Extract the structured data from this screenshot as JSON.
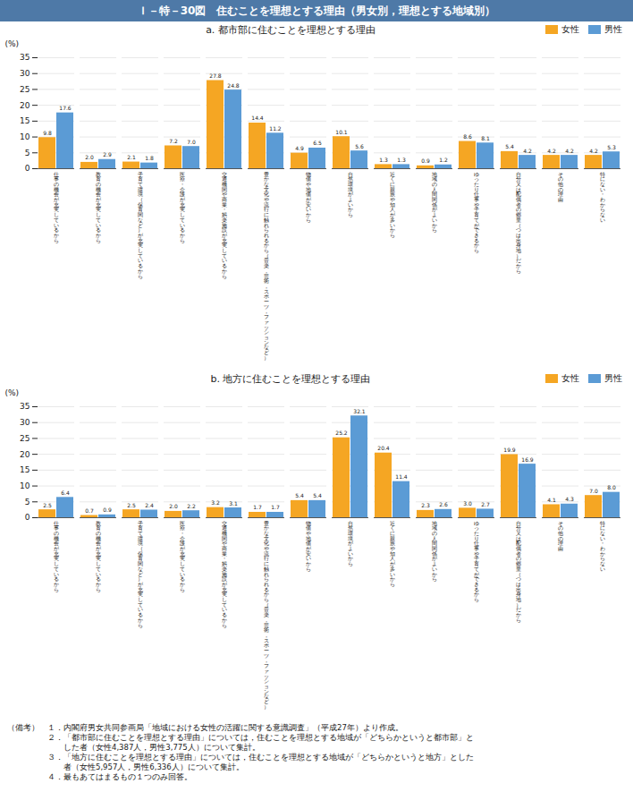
{
  "chart_data": [
    {
      "type": "bar",
      "title": "Ｉ－特－30図　住むことを理想とする理由（男女別，理想とする地域別）",
      "subtitle": "a.  都市部に住むことを理想とする理由",
      "ylabel": "(%)",
      "categories": [
        "仕\n事\nの\n機\n会\nが\n充\n実\nし\nて\nい\nる\nか\nら",
        "教\n育\nの\n機\n会\nが\n充\n実\nし\nて\nい\nる\nか\nら",
        "子\n育\nて\n環\n境\n（\n保\n育\n関\nな\nど\n）\nが\n充\n実\nし\nて\nい\nる\nか\nら",
        "医\n療\n・\n介\n護\nが\n充\n実\nし\nて\nい\nる\nか\nら",
        "交\n通\n機\n関\nや\n商\n業\n・\n娯\n楽\n施\n設\nが\n充\n実\nし\nて\nい\nる\nか\nら",
        "豊\nか\nな\n文\n化\nや\n流\n行\nに\n触\nれ\nら\nれ\nる\nか\nら\n（\n音\n楽\n，\n芸\n術\n，\nス\nポ\nー\nツ\n，\nフ\nァ\nッ\nシ\nョ\nン\nな\nど\n）",
        "物\n価\nや\n地\n価\nが\n安\nい\nか\nら",
        "自\n然\n環\n境\nが\nよ\nい\nか\nら",
        "近\nく\nに\n親\n族\nや\n知\n人\nが\n多\nい\nか\nら",
        "地\n域\nの\n人\n間\n関\n係\nが\nよ\nい\nか\nら",
        "ゆ\nっ\nた\nり\n仕\n事\nや\n子\n育\nて\nが\nで\nき\nる\nか\nら",
        "自\n分\n又\nは\n配\n偶\n者\nの\n郷\n里\n（\nつ\nは\n出\n身\n地\n）\nだ\nか\nら",
        "そ\nの\n他\nの\n理\n由",
        "特\nに\nな\nい\n・\nわ\nか\nら\nな\nい"
      ],
      "series": [
        {
          "name": "女性",
          "color": "#f5a623",
          "values": [
            9.8,
            2.0,
            2.1,
            7.2,
            27.8,
            14.4,
            4.9,
            10.1,
            1.3,
            0.9,
            8.6,
            5.4,
            4.2,
            4.2
          ],
          "value_labels": [
            "9.8",
            "2.0",
            "2.1",
            "7.2",
            "27.8",
            "14.4",
            "4.9",
            "10.1",
            "1.3",
            "0.9",
            "8.6",
            "5.4",
            "4.2",
            "4.2"
          ]
        },
        {
          "name": "男性",
          "color": "#5b9bd5",
          "values": [
            17.6,
            2.9,
            1.8,
            7.0,
            24.8,
            11.2,
            6.5,
            5.6,
            1.3,
            1.2,
            8.1,
            4.2,
            4.2,
            5.3
          ],
          "value_labels": [
            "17.6",
            "2.9",
            "1.8",
            "7.0",
            "24.8",
            "11.2",
            "6.5",
            "5.6",
            "1.3",
            "1.2",
            "8.1",
            "4.2",
            "4.2",
            "5.3"
          ]
        }
      ],
      "ylim": [
        0,
        35
      ],
      "yticks": [
        0,
        5,
        10,
        15,
        20,
        25,
        30,
        35
      ],
      "grid": true,
      "data_labels": true,
      "legend": "upper right"
    },
    {
      "type": "bar",
      "subtitle": "b.  地方に住むことを理想とする理由",
      "ylabel": "(%)",
      "categories": [
        "仕\n事\nの\n機\n会\nが\n充\n実\nし\nて\nい\nる\nか\nら",
        "教\n育\nの\n機\n会\nが\n充\n実\nし\nて\nい\nる\nか\nら",
        "子\n育\nて\n環\n境\n（\n保\n育\n関\nな\nど\n）\nが\n充\n実\nし\nて\nい\nる\nか\nら",
        "医\n療\n・\n介\n護\nが\n充\n実\nし\nて\nい\nる\nか\nら",
        "交\n通\n機\n関\nや\n商\n業\n・\n娯\n楽\n施\n設\nが\n充\n実\nし\nて\nい\nる\nか\nら",
        "豊\nか\nな\n文\n化\nや\n流\n行\nに\n触\nれ\nら\nれ\nる\nか\nら\n（\n音\n楽\n，\n芸\n術\n，\nス\nポ\nー\nツ\n，\nフ\nァ\nッ\nシ\nョ\nン\nな\nど\n）",
        "物\n価\nや\n地\n価\nが\n安\nい\nか\nら",
        "自\n然\n環\n境\nが\nよ\nい\nか\nら",
        "近\nく\nに\n親\n族\nや\n知\n人\nが\n多\nい\nか\nら",
        "地\n域\nの\n人\n間\n関\n係\nが\nよ\nい\nか\nら",
        "ゆ\nっ\nた\nり\n仕\n事\nや\n子\n育\nて\nが\nで\nき\nる\nか\nら",
        "自\n分\n又\nは\n配\n偶\n者\nの\n郷\n里\n（\nつ\nは\n出\n身\n地\n）\nだ\nか\nら",
        "そ\nの\n他\nの\n理\n由",
        "特\nに\nな\nい\n・\nわ\nか\nら\nな\nい"
      ],
      "series": [
        {
          "name": "女性",
          "color": "#f5a623",
          "values": [
            2.5,
            0.7,
            2.5,
            2.0,
            3.2,
            1.7,
            5.4,
            25.2,
            20.4,
            2.3,
            3.0,
            19.9,
            4.1,
            7.0
          ],
          "value_labels": [
            "2.5",
            "0.7",
            "2.5",
            "2.0",
            "3.2",
            "1.7",
            "5.4",
            "25.2",
            "20.4",
            "2.3",
            "3.0",
            "19.9",
            "4.1",
            "7.0"
          ]
        },
        {
          "name": "男性",
          "color": "#5b9bd5",
          "values": [
            6.4,
            0.9,
            2.4,
            2.2,
            3.1,
            1.7,
            5.4,
            32.1,
            11.4,
            2.6,
            2.7,
            16.9,
            4.3,
            8.0
          ],
          "value_labels": [
            "6.4",
            "0.9",
            "2.4",
            "2.2",
            "3.1",
            "1.7",
            "5.4",
            "32.1",
            "11.4",
            "2.6",
            "2.7",
            "16.9",
            "4.3",
            "8.0"
          ]
        }
      ],
      "ylim": [
        0,
        35
      ],
      "yticks": [
        0,
        5,
        10,
        15,
        20,
        25,
        30,
        35
      ],
      "grid": true,
      "data_labels": true,
      "legend": "upper right",
      "annotations": [
        "（備考）　１．内閣府男女共同参画局「地域における女性の活躍に関する意識調査」（平成27年）より作成。",
        "　　　　　２．「都市部に住むことを理想とする理由」については，住むことを理想とする地域が「どちらかというと都市部」と",
        "　　　　　　　した者（女性4,387人，男性3,775人）について集計。",
        "　　　　　３．「地方に住むことを理想とする理由」については，住むことを理想とする地域が「どちらかというと地方」とした",
        "　　　　　　　者（女性5,957人，男性6,336人）について集計。",
        "　　　　　４．最もあてはまるもの１つのみ回答。"
      ]
    }
  ]
}
